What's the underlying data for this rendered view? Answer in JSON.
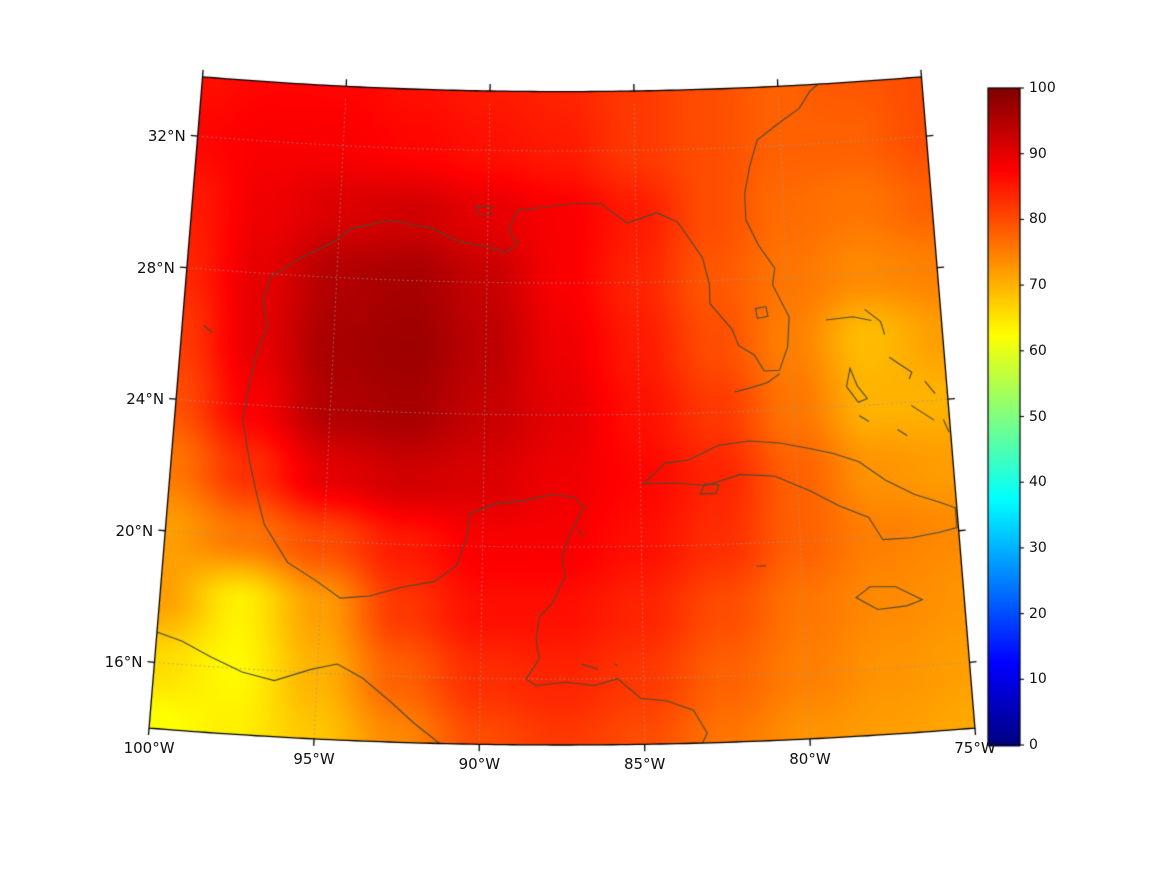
{
  "figure": {
    "background": "#ffffff"
  },
  "chart_data": {
    "type": "heatmap",
    "title": "",
    "colormap": "jet",
    "value_range": [
      0,
      100
    ],
    "legend_position": "right-colorbar",
    "grid_lines": "dotted",
    "colorbar_ticks": [
      "100",
      "90",
      "80",
      "70",
      "60",
      "50",
      "40",
      "30",
      "20",
      "10",
      "0"
    ],
    "lat_ticks": [
      32,
      28,
      24,
      20,
      16
    ],
    "lat_tick_labels": [
      "32°N",
      "28°N",
      "24°N",
      "20°N",
      "16°N"
    ],
    "lon_ticks": [
      -100,
      -95,
      -90,
      -85,
      -80,
      -75
    ],
    "lon_tick_labels": [
      "100°W",
      "95°W",
      "90°W",
      "85°W",
      "80°W",
      "75°W"
    ],
    "extent": {
      "lon_min": -100,
      "lon_max": -75,
      "lat_min": 14,
      "lat_max": 33.8
    },
    "grid": {
      "lons": [
        -100,
        -97.5,
        -95,
        -92.5,
        -90,
        -87.5,
        -85,
        -82.5,
        -80,
        -77.5,
        -75
      ],
      "lats": [
        34,
        32,
        30,
        28,
        26,
        24,
        22,
        20,
        18,
        16,
        14
      ],
      "values": [
        [
          86,
          87,
          87,
          86,
          85,
          84,
          82,
          80,
          78,
          79,
          80
        ],
        [
          87,
          88,
          88,
          87,
          86,
          85,
          82,
          80,
          78,
          78,
          80
        ],
        [
          85,
          89,
          91,
          92,
          90,
          88,
          85,
          80,
          77,
          76,
          78
        ],
        [
          84,
          90,
          95,
          96,
          93,
          88,
          84,
          79,
          76,
          74,
          75
        ],
        [
          82,
          90,
          96,
          97,
          94,
          89,
          85,
          80,
          75,
          69,
          72
        ],
        [
          80,
          88,
          95,
          96,
          93,
          90,
          86,
          82,
          76,
          70,
          70
        ],
        [
          76,
          83,
          90,
          92,
          91,
          89,
          87,
          84,
          78,
          73,
          72
        ],
        [
          72,
          76,
          80,
          85,
          88,
          88,
          86,
          83,
          78,
          75,
          74
        ],
        [
          72,
          64,
          72,
          82,
          86,
          86,
          84,
          80,
          76,
          74,
          73
        ],
        [
          66,
          63,
          70,
          78,
          83,
          84,
          82,
          78,
          75,
          73,
          72
        ],
        [
          62,
          64,
          68,
          74,
          80,
          82,
          80,
          76,
          73,
          72,
          71
        ]
      ]
    }
  }
}
